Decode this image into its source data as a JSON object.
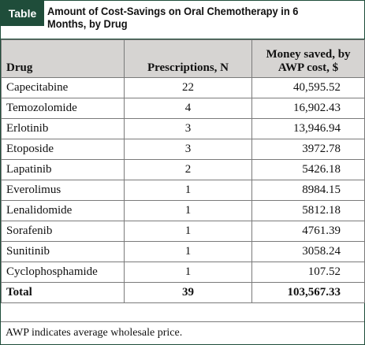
{
  "table": {
    "badge": "Table",
    "title": "Amount of Cost-Savings on Oral Chemotherapy in 6 Months, by Drug",
    "columns": [
      "Drug",
      "Prescriptions, N",
      "Money saved, by AWP cost, $"
    ],
    "rows": [
      {
        "drug": "Capecitabine",
        "prescriptions": "22",
        "saved": "40,595.52"
      },
      {
        "drug": "Temozolomide",
        "prescriptions": "4",
        "saved": "16,902.43"
      },
      {
        "drug": "Erlotinib",
        "prescriptions": "3",
        "saved": "13,946.94"
      },
      {
        "drug": "Etoposide",
        "prescriptions": "3",
        "saved": "3972.78"
      },
      {
        "drug": "Lapatinib",
        "prescriptions": "2",
        "saved": "5426.18"
      },
      {
        "drug": "Everolimus",
        "prescriptions": "1",
        "saved": "8984.15"
      },
      {
        "drug": "Lenalidomide",
        "prescriptions": "1",
        "saved": "5812.18"
      },
      {
        "drug": "Sorafenib",
        "prescriptions": "1",
        "saved": "4761.39"
      },
      {
        "drug": "Sunitinib",
        "prescriptions": "1",
        "saved": "3058.24"
      },
      {
        "drug": "Cyclophosphamide",
        "prescriptions": "1",
        "saved": "107.52"
      }
    ],
    "total": {
      "label": "Total",
      "prescriptions": "39",
      "saved": "103,567.33"
    },
    "footnote": "AWP indicates average wholesale price."
  },
  "colors": {
    "badge_bg": "#1f4d3a",
    "header_bg": "#d6d4d2",
    "border": "#7a7a7a"
  }
}
